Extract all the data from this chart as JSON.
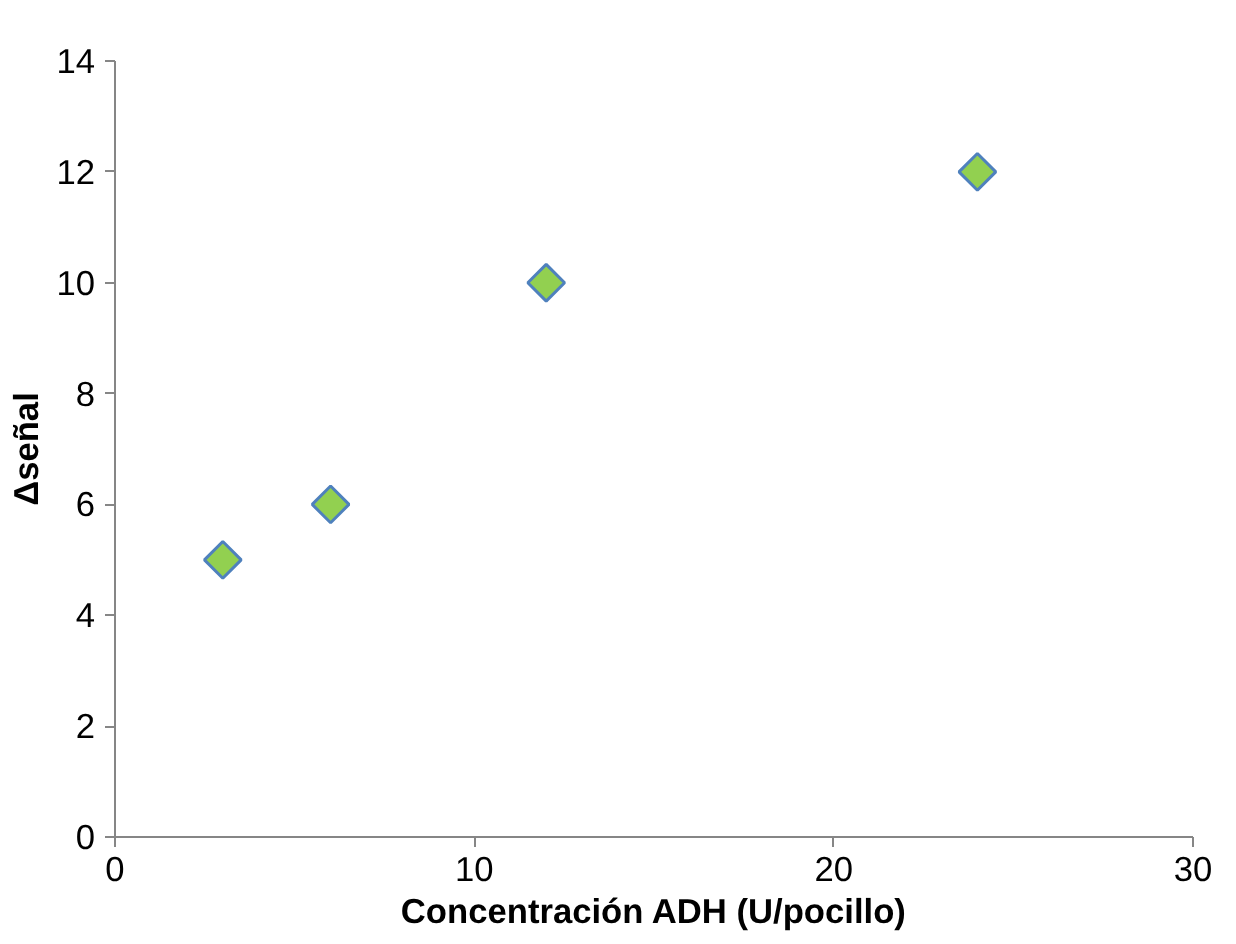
{
  "chart_data": {
    "type": "scatter",
    "xlabel": "Concentración ADH (U/pocillo)",
    "ylabel": "Δseñal",
    "x": [
      3,
      6,
      12,
      24
    ],
    "series": [
      {
        "color": "#92d050",
        "values": [
          5,
          6,
          10,
          12
        ]
      }
    ],
    "xlim": [
      0,
      30
    ],
    "ylim": [
      0,
      14
    ],
    "xticks": [
      0,
      10,
      20,
      30
    ],
    "yticks": [
      0,
      2,
      4,
      6,
      8,
      10,
      12,
      14
    ],
    "grid": false,
    "marker": "diamond"
  }
}
